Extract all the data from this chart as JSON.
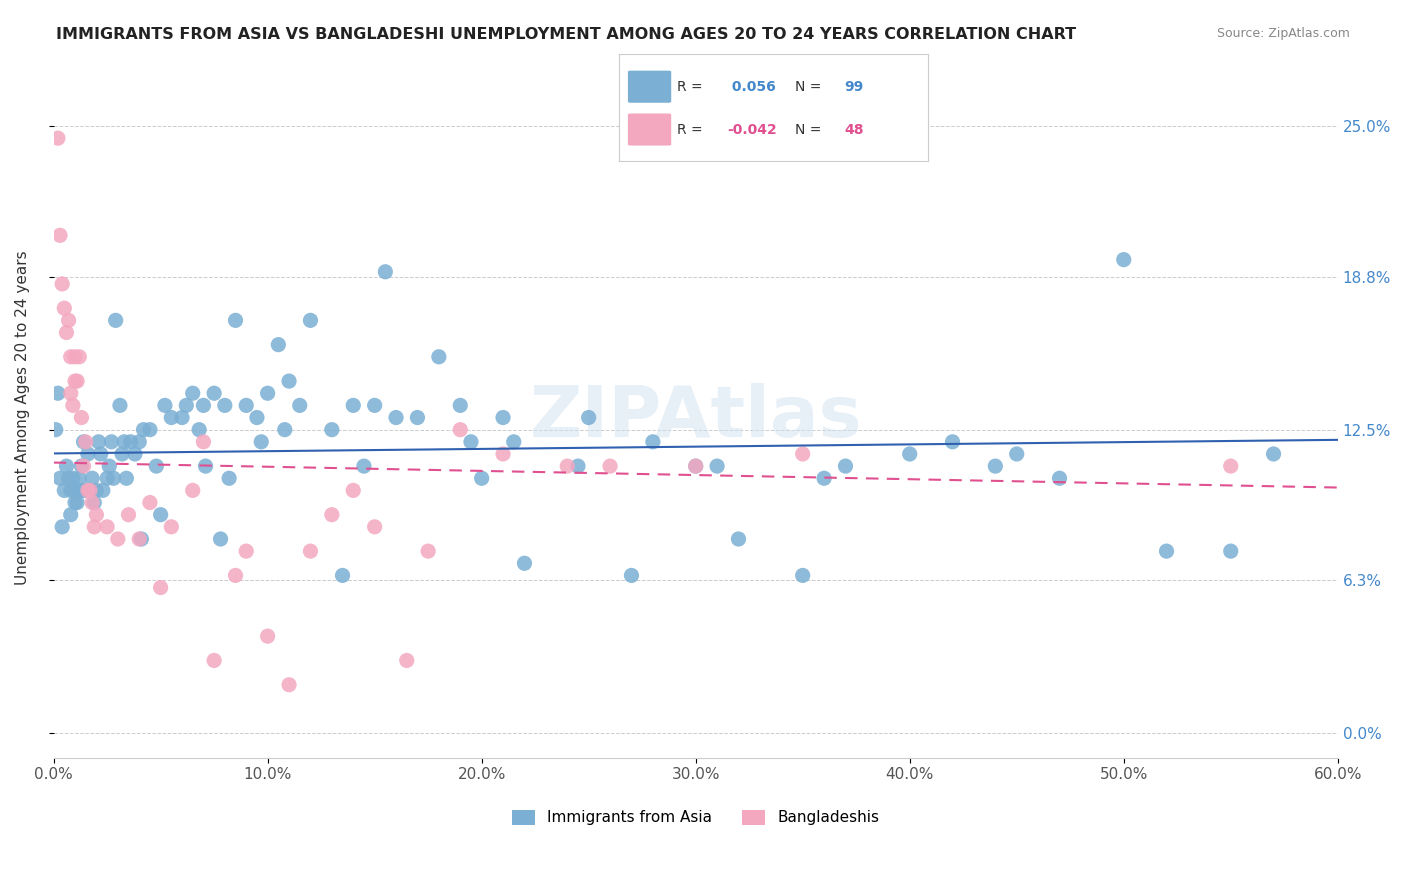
{
  "title": "IMMIGRANTS FROM ASIA VS BANGLADESHI UNEMPLOYMENT AMONG AGES 20 TO 24 YEARS CORRELATION CHART",
  "source": "Source: ZipAtlas.com",
  "xlabel_ticks": [
    "0.0%",
    "10.0%",
    "20.0%",
    "30.0%",
    "40.0%",
    "50.0%",
    "60.0%"
  ],
  "xlabel_vals": [
    0.0,
    0.1,
    0.2,
    0.3,
    0.4,
    0.5,
    0.6
  ],
  "ylabel_ticks": [
    "0.0%",
    "6.3%",
    "12.5%",
    "18.8%",
    "25.0%"
  ],
  "ylabel_vals": [
    0.0,
    0.063,
    0.125,
    0.188,
    0.25
  ],
  "ylabel_label": "Unemployment Among Ages 20 to 24 years",
  "legend_label1": "Immigrants from Asia",
  "legend_label2": "Bangladeshis",
  "r1": "0.056",
  "n1": "99",
  "r2": "-0.042",
  "n2": "48",
  "color_blue": "#7bafd4",
  "color_pink": "#f4a8c0",
  "color_blue_dark": "#5b9abf",
  "color_pink_dark": "#e87faa",
  "line_blue": "#3060b0",
  "line_pink": "#e05090",
  "watermark": "ZIPAtlas",
  "xlim": [
    0.0,
    0.6
  ],
  "ylim": [
    -0.01,
    0.27
  ],
  "blue_x": [
    0.002,
    0.005,
    0.006,
    0.007,
    0.008,
    0.008,
    0.009,
    0.01,
    0.01,
    0.011,
    0.012,
    0.013,
    0.013,
    0.014,
    0.015,
    0.016,
    0.017,
    0.018,
    0.019,
    0.02,
    0.021,
    0.022,
    0.023,
    0.025,
    0.026,
    0.027,
    0.028,
    0.032,
    0.033,
    0.034,
    0.036,
    0.038,
    0.04,
    0.042,
    0.045,
    0.048,
    0.05,
    0.052,
    0.055,
    0.06,
    0.062,
    0.065,
    0.068,
    0.07,
    0.075,
    0.08,
    0.085,
    0.09,
    0.095,
    0.1,
    0.105,
    0.11,
    0.115,
    0.12,
    0.13,
    0.14,
    0.15,
    0.16,
    0.17,
    0.18,
    0.19,
    0.2,
    0.21,
    0.22,
    0.25,
    0.27,
    0.3,
    0.32,
    0.35,
    0.37,
    0.4,
    0.42,
    0.45,
    0.47,
    0.5,
    0.52,
    0.55,
    0.57,
    0.001,
    0.003,
    0.004,
    0.029,
    0.031,
    0.041,
    0.071,
    0.078,
    0.082,
    0.097,
    0.108,
    0.135,
    0.145,
    0.155,
    0.195,
    0.215,
    0.245,
    0.28,
    0.31,
    0.36,
    0.44
  ],
  "blue_y": [
    0.14,
    0.1,
    0.11,
    0.105,
    0.1,
    0.09,
    0.105,
    0.095,
    0.1,
    0.095,
    0.105,
    0.1,
    0.11,
    0.12,
    0.1,
    0.115,
    0.1,
    0.105,
    0.095,
    0.1,
    0.12,
    0.115,
    0.1,
    0.105,
    0.11,
    0.12,
    0.105,
    0.115,
    0.12,
    0.105,
    0.12,
    0.115,
    0.12,
    0.125,
    0.125,
    0.11,
    0.09,
    0.135,
    0.13,
    0.13,
    0.135,
    0.14,
    0.125,
    0.135,
    0.14,
    0.135,
    0.17,
    0.135,
    0.13,
    0.14,
    0.16,
    0.145,
    0.135,
    0.17,
    0.125,
    0.135,
    0.135,
    0.13,
    0.13,
    0.155,
    0.135,
    0.105,
    0.13,
    0.07,
    0.13,
    0.065,
    0.11,
    0.08,
    0.065,
    0.11,
    0.115,
    0.12,
    0.115,
    0.105,
    0.195,
    0.075,
    0.075,
    0.115,
    0.125,
    0.105,
    0.085,
    0.17,
    0.135,
    0.08,
    0.11,
    0.08,
    0.105,
    0.12,
    0.125,
    0.065,
    0.11,
    0.19,
    0.12,
    0.12,
    0.11,
    0.12,
    0.11,
    0.105,
    0.11
  ],
  "pink_x": [
    0.002,
    0.003,
    0.004,
    0.005,
    0.006,
    0.007,
    0.008,
    0.008,
    0.009,
    0.01,
    0.01,
    0.011,
    0.012,
    0.013,
    0.014,
    0.015,
    0.016,
    0.017,
    0.018,
    0.019,
    0.02,
    0.025,
    0.03,
    0.035,
    0.04,
    0.045,
    0.05,
    0.055,
    0.065,
    0.07,
    0.075,
    0.085,
    0.09,
    0.1,
    0.11,
    0.12,
    0.13,
    0.14,
    0.15,
    0.165,
    0.175,
    0.19,
    0.21,
    0.24,
    0.26,
    0.3,
    0.35,
    0.55
  ],
  "pink_y": [
    0.245,
    0.205,
    0.185,
    0.175,
    0.165,
    0.17,
    0.155,
    0.14,
    0.135,
    0.145,
    0.155,
    0.145,
    0.155,
    0.13,
    0.11,
    0.12,
    0.1,
    0.1,
    0.095,
    0.085,
    0.09,
    0.085,
    0.08,
    0.09,
    0.08,
    0.095,
    0.06,
    0.085,
    0.1,
    0.12,
    0.03,
    0.065,
    0.075,
    0.04,
    0.02,
    0.075,
    0.09,
    0.1,
    0.085,
    0.03,
    0.075,
    0.125,
    0.115,
    0.11,
    0.11,
    0.11,
    0.115,
    0.11
  ]
}
